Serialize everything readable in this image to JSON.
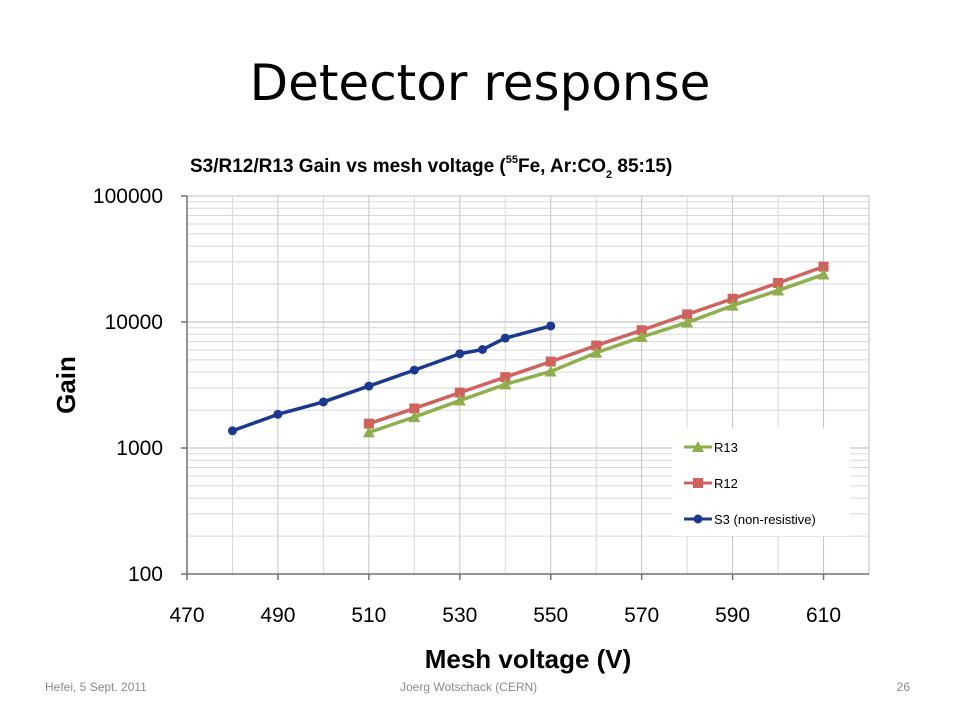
{
  "slide": {
    "title": "Detector response"
  },
  "chart_title": {
    "prefix": "S3/R12/R13 Gain vs mesh voltage (",
    "sup": "55",
    "mid": "Fe, Ar:CO",
    "sub": "2",
    "suffix": " 85:15)"
  },
  "chart_data": {
    "type": "line",
    "title": "S3/R12/R13 Gain vs mesh voltage (55Fe, Ar:CO2 85:15)",
    "xlabel": "Mesh voltage (V)",
    "ylabel": "Gain",
    "xlim": [
      470,
      620
    ],
    "ylim": [
      100,
      100000
    ],
    "yscale": "log",
    "xticks": [
      "470",
      "490",
      "510",
      "530",
      "550",
      "570",
      "590",
      "610"
    ],
    "yticks": [
      "100",
      "1000",
      "10000",
      "100000"
    ],
    "grid": true,
    "legend_position": "lower-right",
    "series": [
      {
        "name": "R13",
        "color": "#8FAE4C",
        "marker": "triangle",
        "x": [
          510,
          520,
          530,
          540,
          550,
          560,
          570,
          580,
          590,
          600,
          610
        ],
        "y": [
          1330,
          1760,
          2380,
          3200,
          4050,
          5700,
          7600,
          9900,
          13500,
          17800,
          23800
        ]
      },
      {
        "name": "R12",
        "color": "#D0625E",
        "marker": "square",
        "x": [
          510,
          520,
          530,
          540,
          550,
          560,
          570,
          580,
          590,
          600,
          610
        ],
        "y": [
          1560,
          2060,
          2750,
          3650,
          4850,
          6500,
          8600,
          11500,
          15300,
          20400,
          27500
        ]
      },
      {
        "name": "S3 (non-resistive)",
        "color": "#1B3A8F",
        "marker": "circle",
        "x": [
          480,
          490,
          500,
          510,
          520,
          530,
          535,
          540,
          550
        ],
        "y": [
          1370,
          1850,
          2320,
          3100,
          4150,
          5600,
          6050,
          7450,
          9300
        ]
      }
    ]
  },
  "footer": {
    "left": "Hefei, 5 Sept. 2011",
    "center": "Joerg Wotschack (CERN)",
    "right": "26"
  }
}
